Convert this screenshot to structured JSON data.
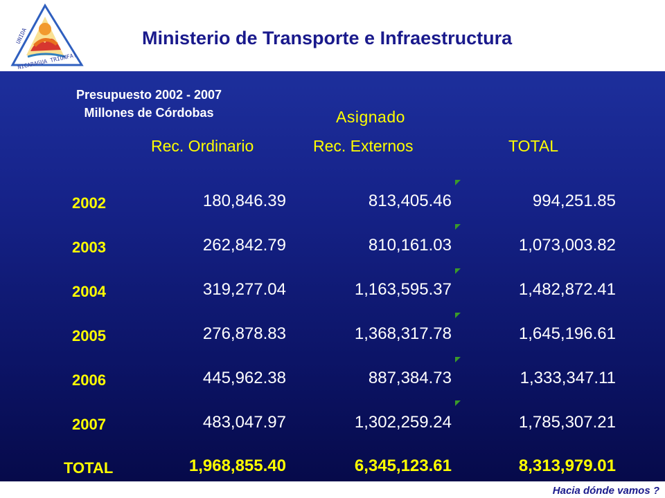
{
  "header": {
    "title": "Ministerio de Transporte e Infraestructura",
    "logo": {
      "icon": "nicaragua-triangle-emblem-icon",
      "motto_top": "UNIDA",
      "motto_bottom": "NICARAGUA TRIUNFA!"
    }
  },
  "subtitle": {
    "line1": "Presupuesto 2002 - 2007",
    "line2": "Millones de Córdobas"
  },
  "table": {
    "group_header": "Asignado",
    "columns": [
      "Rec. Ordinario",
      "Rec. Externos",
      "TOTAL"
    ],
    "rows": [
      {
        "year": "2002",
        "ordinario": "180,846.39",
        "externos": "813,405.46",
        "total": "994,251.85"
      },
      {
        "year": "2003",
        "ordinario": "262,842.79",
        "externos": "810,161.03",
        "total": "1,073,003.82"
      },
      {
        "year": "2004",
        "ordinario": "319,277.04",
        "externos": "1,163,595.37",
        "total": "1,482,872.41"
      },
      {
        "year": "2005",
        "ordinario": "276,878.83",
        "externos": "1,368,317.78",
        "total": "1,645,196.61"
      },
      {
        "year": "2006",
        "ordinario": "445,962.38",
        "externos": "887,384.73",
        "total": "1,333,347.11"
      },
      {
        "year": "2007",
        "ordinario": "483,047.97",
        "externos": "1,302,259.24",
        "total": "1,785,307.21"
      }
    ],
    "total_row": {
      "label": "TOTAL",
      "ordinario": "1,968,855.40",
      "externos": "6,345,123.61",
      "total": "8,313,979.01"
    }
  },
  "footer": {
    "text": "Hacia dónde vamos ?"
  },
  "colors": {
    "title": "#1a1a8c",
    "panel_top": "#1d2f9c",
    "panel_bottom": "#060a4a",
    "highlight": "#ffff00",
    "value_text": "#ffffff",
    "comment_marker": "#3a9a2a"
  }
}
